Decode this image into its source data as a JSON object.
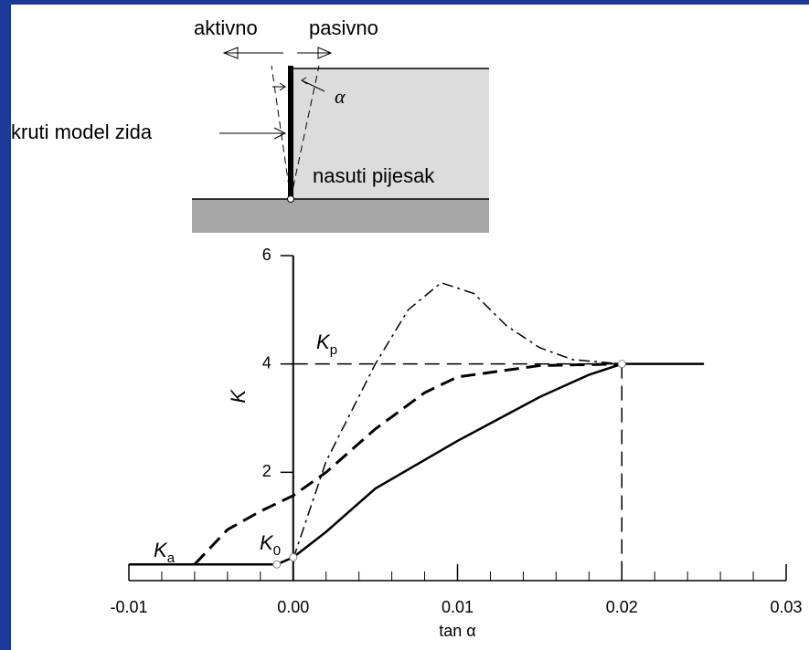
{
  "diagram": {
    "left_arrow_label": "aktivno",
    "right_arrow_label": "pasivno",
    "angle_label": "α",
    "wall_label": "kruti model zida",
    "soil_label": "nasuti pijesak"
  },
  "chart_data": {
    "type": "line",
    "x_label": "tan α",
    "y_label": "K",
    "annotations": [
      {
        "text": "K",
        "sub": "a"
      },
      {
        "text": "K",
        "sub": "0"
      },
      {
        "text": "K",
        "sub": "p"
      }
    ],
    "xlim": [
      -0.01,
      0.03
    ],
    "ylim": [
      0,
      6
    ],
    "xticks": [
      {
        "value": -0.01,
        "label": "-0.01"
      },
      {
        "value": 0,
        "label": "0.00"
      },
      {
        "value": 0.01,
        "label": "0.01"
      },
      {
        "value": 0.02,
        "label": "0.02"
      },
      {
        "value": 0.03,
        "label": "0.03"
      }
    ],
    "xminorticks": [
      -0.008,
      -0.006,
      -0.004,
      -0.002,
      0.002,
      0.004,
      0.006,
      0.008,
      0.012,
      0.014,
      0.016,
      0.018,
      0.022,
      0.024,
      0.026,
      0.028
    ],
    "yticks": [
      2,
      4,
      6
    ],
    "series": [
      {
        "color": "#000000",
        "dash": "solid",
        "x": [
          -0.01,
          -0.001,
          0,
          0.002,
          0.005,
          0.01,
          0.015,
          0.018,
          0.02,
          0.025
        ],
        "values": [
          0.3,
          0.3,
          0.43,
          0.9,
          1.7,
          2.58,
          3.39,
          3.8,
          4,
          4
        ]
      },
      {
        "color": "#000000",
        "dash": "dashed",
        "x": [
          -0.006,
          -0.004,
          -0.002,
          0,
          0.002,
          0.005,
          0.008,
          0.01,
          0.015,
          0.02
        ],
        "values": [
          0.3,
          0.94,
          1.28,
          1.57,
          2,
          2.8,
          3.47,
          3.76,
          3.97,
          4
        ]
      },
      {
        "color": "#000000",
        "dash": "dashdot",
        "x": [
          0,
          0.002,
          0.005,
          0.007,
          0.009,
          0.011,
          0.013,
          0.015,
          0.017,
          0.02
        ],
        "values": [
          0.4,
          2.2,
          4,
          5,
          5.5,
          5.3,
          4.7,
          4.3,
          4.08,
          4
        ]
      }
    ]
  }
}
